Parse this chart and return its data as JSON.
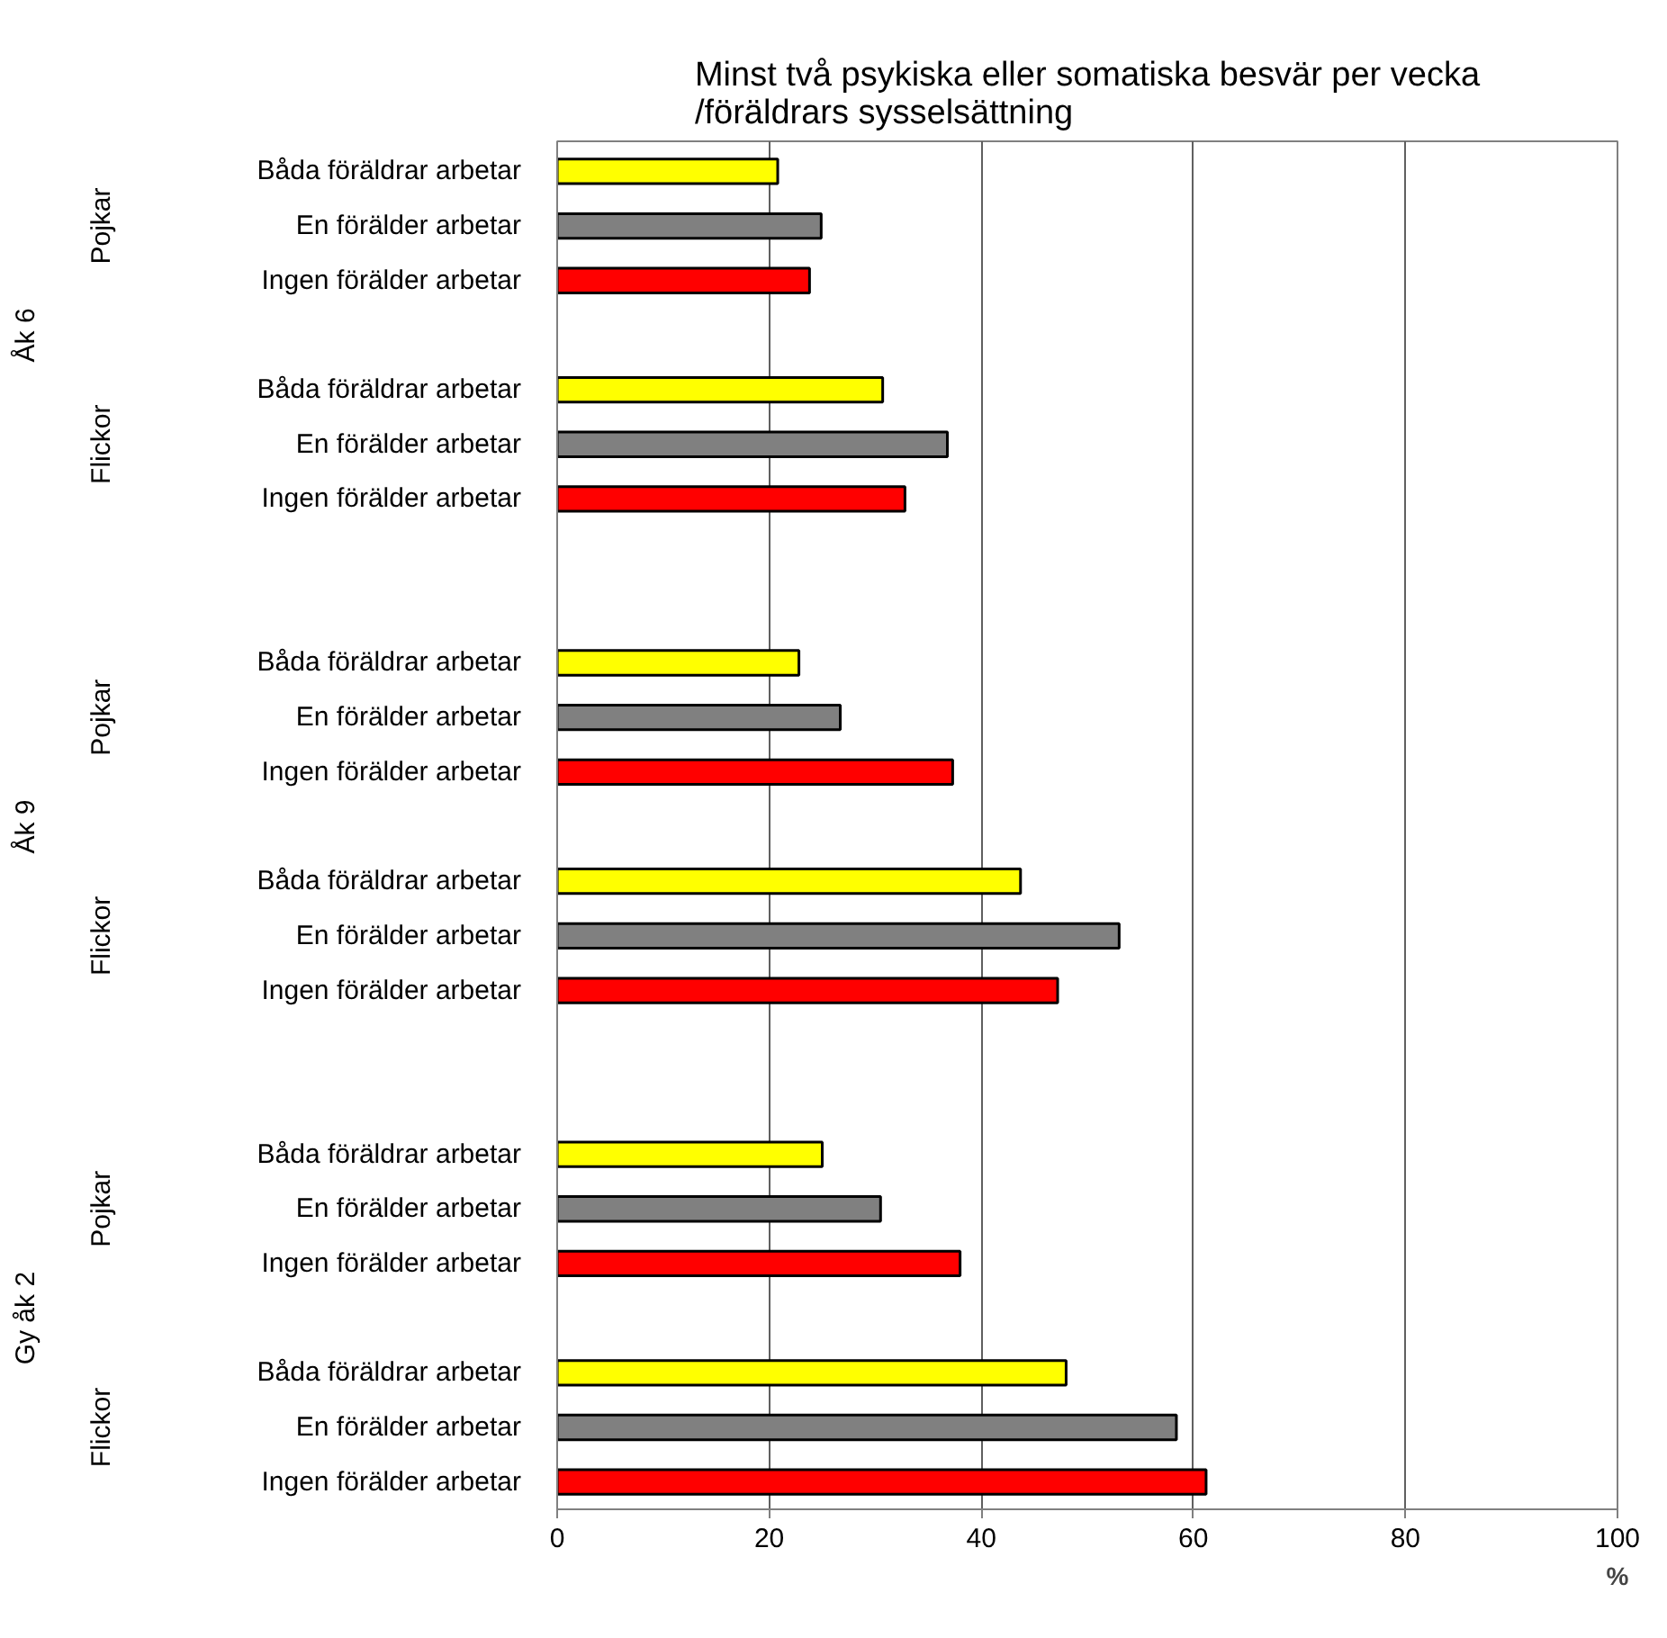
{
  "chart_data": {
    "type": "bar",
    "orientation": "horizontal",
    "title": "Minst två psykiska eller somatiska besvär per vecka\n/föräldrars sysselsättning",
    "xlabel": "%",
    "categories": [
      "Båda föräldrar arbetar",
      "En förälder arbetar",
      "Ingen förälder arbetar",
      "Båda föräldrar arbetar",
      "En förälder arbetar",
      "Ingen förälder arbetar",
      "Båda föräldrar arbetar",
      "En förälder arbetar",
      "Ingen förälder arbetar",
      "Båda föräldrar arbetar",
      "En förälder arbetar",
      "Ingen förälder arbetar",
      "Båda föräldrar arbetar",
      "En förälder arbetar",
      "Ingen förälder arbetar",
      "Båda föräldrar arbetar",
      "En förälder arbetar",
      "Ingen förälder arbetar"
    ],
    "values": [
      20.8,
      24.9,
      23.8,
      30.7,
      36.8,
      32.8,
      22.8,
      26.7,
      37.3,
      43.7,
      53.0,
      47.2,
      25.0,
      30.5,
      38.0,
      48.0,
      58.4,
      61.2
    ],
    "colors": [
      "#ffff00",
      "#808080",
      "#ff0000",
      "#ffff00",
      "#808080",
      "#ff0000",
      "#ffff00",
      "#808080",
      "#ff0000",
      "#ffff00",
      "#808080",
      "#ff0000",
      "#ffff00",
      "#808080",
      "#ff0000",
      "#ffff00",
      "#808080",
      "#ff0000"
    ],
    "annotations": [
      "Pojkar",
      "Flickor",
      "Pojkar",
      "Flickor",
      "Pojkar",
      "Flickor",
      "Åk 6",
      "Åk 9",
      "Gy åk 2"
    ],
    "xlim": [
      0,
      100
    ],
    "xticks": [
      0,
      20,
      40,
      60,
      80,
      100
    ],
    "grid": "x"
  }
}
